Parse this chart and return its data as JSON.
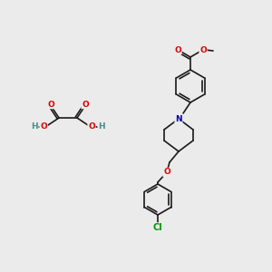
{
  "bg_color": "#ebebeb",
  "bond_color": "#1a1a1a",
  "bond_width": 1.2,
  "atom_colors": {
    "O": "#dd0000",
    "N": "#0000bb",
    "Cl": "#009900",
    "C": "#1a1a1a",
    "H": "#4a8a8a"
  },
  "font_size": 6.5,
  "fig_w": 3.0,
  "fig_h": 3.0,
  "dpi": 100
}
